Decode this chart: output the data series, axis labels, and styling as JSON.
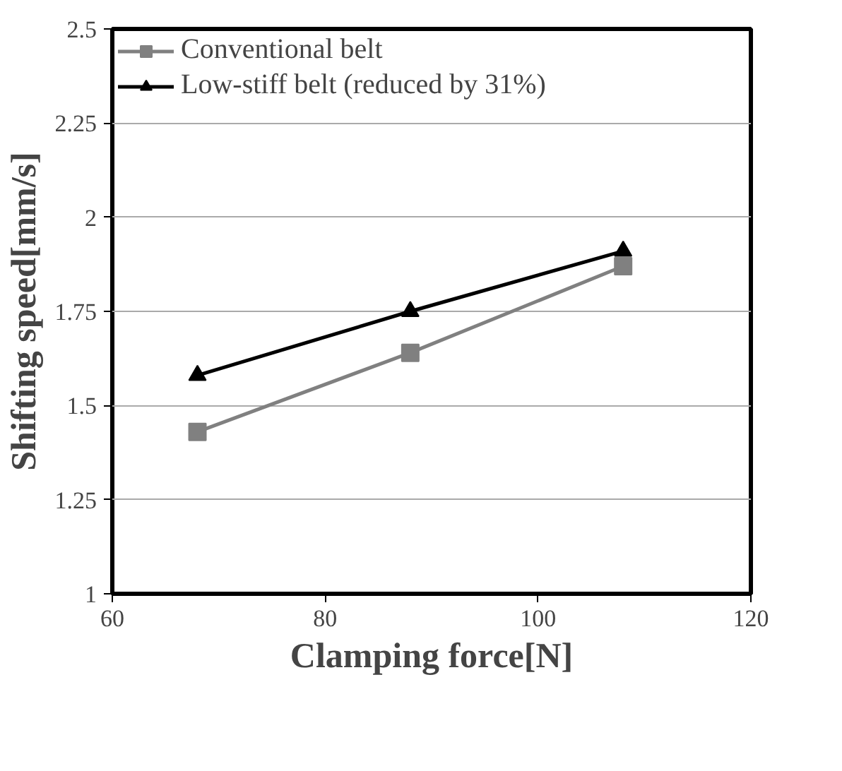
{
  "chart_data": {
    "type": "line",
    "xlabel": "Clamping force[N]",
    "ylabel": "Shifting speed[mm/s]",
    "x": [
      68,
      88,
      108
    ],
    "series": [
      {
        "name": "Conventional belt",
        "color": "#808080",
        "marker": "square",
        "values": [
          1.43,
          1.64,
          1.87
        ]
      },
      {
        "name": "Low-stiff belt (reduced by 31%)",
        "color": "#000000",
        "marker": "triangle",
        "values": [
          1.58,
          1.75,
          1.91
        ]
      }
    ],
    "xlim": [
      60,
      120
    ],
    "xticks": [
      60,
      80,
      100,
      120
    ],
    "ylim": [
      1,
      2.5
    ],
    "yticks": [
      1,
      1.25,
      1.5,
      1.75,
      2,
      2.25,
      2.5
    ],
    "grid": "y",
    "legend": "top left"
  }
}
